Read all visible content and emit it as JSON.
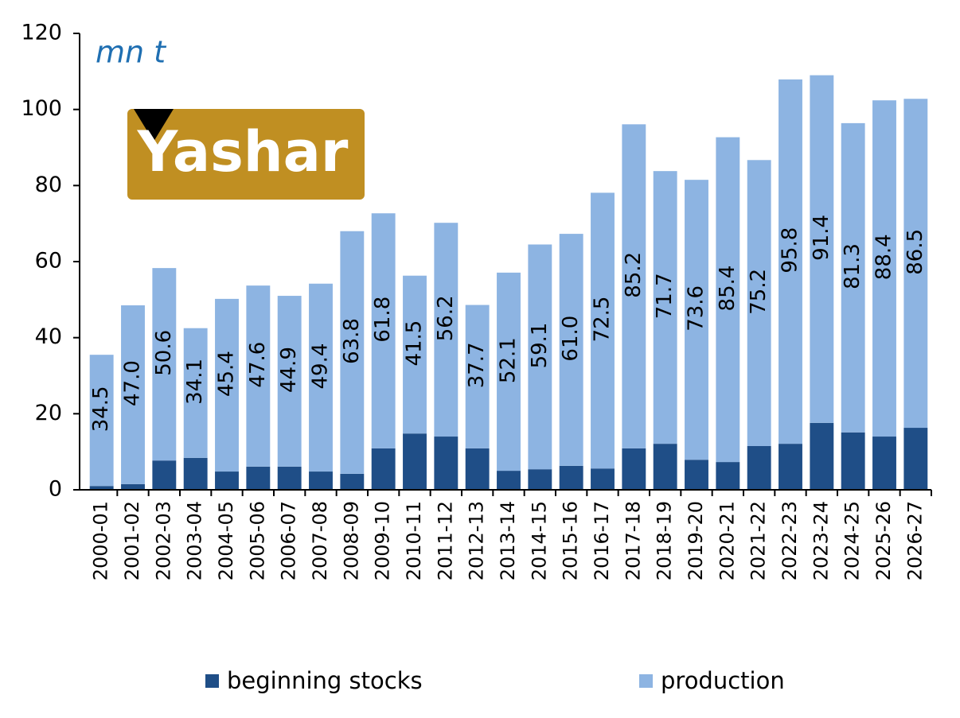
{
  "chart_data": {
    "type": "stacked_bar",
    "unit_label": "mn t",
    "watermark": "Yashar",
    "categories": [
      "2000-01",
      "2001-02",
      "2002-03",
      "2003-04",
      "2004-05",
      "2005-06",
      "2006-07",
      "2007-08",
      "2008-09",
      "2009-10",
      "2010-11",
      "2011-12",
      "2012-13",
      "2013-14",
      "2014-15",
      "2015-16",
      "2016-17",
      "2017-18",
      "2018-19",
      "2019-20",
      "2020-21",
      "2021-22",
      "2022-23",
      "2023-24",
      "2024-25",
      "2025-26",
      "2026-27"
    ],
    "series": [
      {
        "name": "beginning stocks",
        "color": "#1f4e87",
        "values": [
          1.0,
          1.5,
          7.7,
          8.4,
          4.8,
          6.1,
          6.1,
          4.8,
          4.2,
          10.9,
          14.8,
          14.0,
          10.9,
          5.0,
          5.4,
          6.3,
          5.6,
          10.9,
          12.1,
          7.9,
          7.3,
          11.5,
          12.1,
          17.6,
          15.1,
          14.0,
          16.3
        ]
      },
      {
        "name": "production",
        "color": "#8db4e2",
        "values": [
          34.5,
          47.0,
          50.6,
          34.1,
          45.4,
          47.6,
          44.9,
          49.4,
          63.8,
          61.8,
          41.5,
          56.2,
          37.7,
          52.1,
          59.1,
          61.0,
          72.5,
          85.2,
          71.7,
          73.6,
          85.4,
          75.2,
          95.8,
          91.4,
          81.3,
          88.4,
          86.5
        ],
        "value_labels": [
          "34.5",
          "47.0",
          "50.6",
          "34.1",
          "45.4",
          "47.6",
          "44.9",
          "49.4",
          "63.8",
          "61.8",
          "41.5",
          "56.2",
          "37.7",
          "52.1",
          "59.1",
          "61.0",
          "72.5",
          "85.2",
          "71.7",
          "73.6",
          "85.4",
          "75.2",
          "95.8",
          "91.4",
          "81.3",
          "88.4",
          "86.5"
        ]
      }
    ],
    "ylim": [
      0,
      120
    ],
    "yticks": [
      0,
      20,
      40,
      60,
      80,
      100,
      120
    ],
    "legend": "bottom"
  }
}
